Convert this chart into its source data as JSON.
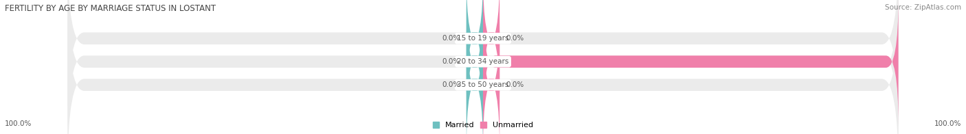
{
  "title": "FERTILITY BY AGE BY MARRIAGE STATUS IN LOSTANT",
  "source": "Source: ZipAtlas.com",
  "categories": [
    "15 to 19 years",
    "20 to 34 years",
    "35 to 50 years"
  ],
  "married_values": [
    0.0,
    0.0,
    0.0
  ],
  "unmarried_values": [
    0.0,
    100.0,
    0.0
  ],
  "married_color": "#6ec0c0",
  "unmarried_color": "#f07faa",
  "bar_bg_color": "#ebebeb",
  "bar_height": 0.52,
  "married_stub": 4.0,
  "unmarried_stub": 4.0,
  "left_axis_label": "100.0%",
  "right_axis_label": "100.0%",
  "title_fontsize": 8.5,
  "value_fontsize": 7.5,
  "legend_fontsize": 8,
  "source_fontsize": 7.5,
  "text_color": "#555555",
  "cat_label_fontsize": 7.5
}
